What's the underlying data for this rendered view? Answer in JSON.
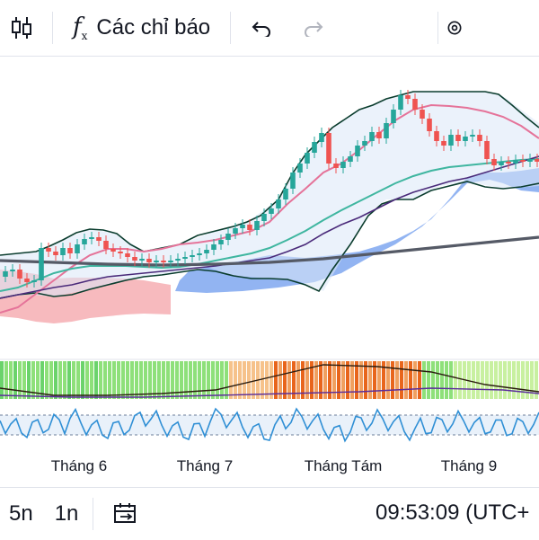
{
  "toolbar": {
    "candles_icon": "candlestick-icon",
    "indicators_label": "Các chỉ báo",
    "undo_icon": "undo-icon",
    "redo_icon": "redo-icon",
    "settings_icon": "gear-icon"
  },
  "chart_data": {
    "type": "candlestick",
    "x_tick_labels": [
      "Tháng 6",
      "Tháng 7",
      "Tháng Tám",
      "Tháng 9"
    ],
    "overlays": [
      "bollinger-bands",
      "ichimoku-cloud",
      "moving-averages"
    ],
    "colors": {
      "up": "#26a69a",
      "down": "#ef5350",
      "bb": "#0b3d2e",
      "ma_pink": "#e57399",
      "ma_teal": "#3fb6a0",
      "ma_purple": "#4a2a7a",
      "ma_gray": "#555a66",
      "cloud_blue": "#7fa7f0",
      "cloud_red": "#f4a3a8"
    }
  },
  "bottom": {
    "timeframes": [
      "5n",
      "1n"
    ],
    "compare_icon": "date-range-icon",
    "clock": "09:53:09 (UTC+"
  }
}
